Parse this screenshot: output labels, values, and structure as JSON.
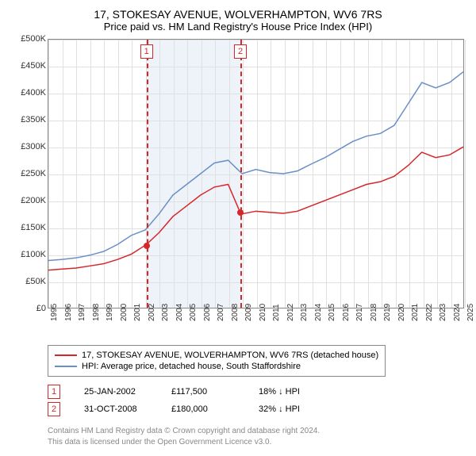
{
  "title": "17, STOKESAY AVENUE, WOLVERHAMPTON, WV6 7RS",
  "subtitle": "Price paid vs. HM Land Registry's House Price Index (HPI)",
  "chart": {
    "type": "line",
    "background_color": "#ffffff",
    "grid_color": "#e0e0e0",
    "axis_color": "#888888",
    "label_fontsize": 11,
    "ylim": [
      0,
      500000
    ],
    "ytick_step": 50000,
    "yticks": [
      "£0",
      "£50K",
      "£100K",
      "£150K",
      "£200K",
      "£250K",
      "£300K",
      "£350K",
      "£400K",
      "£450K",
      "£500K"
    ],
    "xlim": [
      1995,
      2025
    ],
    "xticks": [
      "1995",
      "1996",
      "1997",
      "1998",
      "1999",
      "2000",
      "2001",
      "2002",
      "2003",
      "2004",
      "2005",
      "2006",
      "2007",
      "2008",
      "2009",
      "2010",
      "2011",
      "2012",
      "2013",
      "2014",
      "2015",
      "2016",
      "2017",
      "2018",
      "2019",
      "2020",
      "2021",
      "2022",
      "2023",
      "2024",
      "2025"
    ],
    "highlight_band": {
      "xstart": 2002.07,
      "xend": 2008.83,
      "color": "#eef3fa"
    },
    "markers": [
      {
        "n": "1",
        "x": 2002.07,
        "y": 117500,
        "color": "#d62728",
        "date": "25-JAN-2002",
        "price": "£117,500",
        "delta": "18% ↓ HPI"
      },
      {
        "n": "2",
        "x": 2008.83,
        "y": 180000,
        "color": "#d62728",
        "date": "31-OCT-2008",
        "price": "£180,000",
        "delta": "32% ↓ HPI"
      }
    ],
    "series": [
      {
        "name": "17, STOKESAY AVENUE, WOLVERHAMPTON, WV6 7RS (detached house)",
        "color": "#d62728",
        "line_width": 1.5,
        "data": [
          [
            1995,
            70000
          ],
          [
            1996,
            72000
          ],
          [
            1997,
            74000
          ],
          [
            1998,
            78000
          ],
          [
            1999,
            82000
          ],
          [
            2000,
            90000
          ],
          [
            2001,
            100000
          ],
          [
            2002.07,
            117500
          ],
          [
            2003,
            140000
          ],
          [
            2004,
            170000
          ],
          [
            2005,
            190000
          ],
          [
            2006,
            210000
          ],
          [
            2007,
            225000
          ],
          [
            2008,
            230000
          ],
          [
            2008.83,
            180000
          ],
          [
            2009,
            175000
          ],
          [
            2010,
            180000
          ],
          [
            2011,
            178000
          ],
          [
            2012,
            176000
          ],
          [
            2013,
            180000
          ],
          [
            2014,
            190000
          ],
          [
            2015,
            200000
          ],
          [
            2016,
            210000
          ],
          [
            2017,
            220000
          ],
          [
            2018,
            230000
          ],
          [
            2019,
            235000
          ],
          [
            2020,
            245000
          ],
          [
            2021,
            265000
          ],
          [
            2022,
            290000
          ],
          [
            2023,
            280000
          ],
          [
            2024,
            285000
          ],
          [
            2025,
            300000
          ]
        ]
      },
      {
        "name": "HPI: Average price, detached house, South Staffordshire",
        "color": "#6a8fc5",
        "line_width": 1.5,
        "data": [
          [
            1995,
            88000
          ],
          [
            1996,
            90000
          ],
          [
            1997,
            93000
          ],
          [
            1998,
            98000
          ],
          [
            1999,
            105000
          ],
          [
            2000,
            118000
          ],
          [
            2001,
            135000
          ],
          [
            2002,
            145000
          ],
          [
            2003,
            175000
          ],
          [
            2004,
            210000
          ],
          [
            2005,
            230000
          ],
          [
            2006,
            250000
          ],
          [
            2007,
            270000
          ],
          [
            2008,
            275000
          ],
          [
            2009,
            250000
          ],
          [
            2010,
            258000
          ],
          [
            2011,
            252000
          ],
          [
            2012,
            250000
          ],
          [
            2013,
            255000
          ],
          [
            2014,
            268000
          ],
          [
            2015,
            280000
          ],
          [
            2016,
            295000
          ],
          [
            2017,
            310000
          ],
          [
            2018,
            320000
          ],
          [
            2019,
            325000
          ],
          [
            2020,
            340000
          ],
          [
            2021,
            380000
          ],
          [
            2022,
            420000
          ],
          [
            2023,
            410000
          ],
          [
            2024,
            420000
          ],
          [
            2025,
            440000
          ]
        ]
      }
    ]
  },
  "footer_line1": "Contains HM Land Registry data © Crown copyright and database right 2024.",
  "footer_line2": "This data is licensed under the Open Government Licence v3.0."
}
